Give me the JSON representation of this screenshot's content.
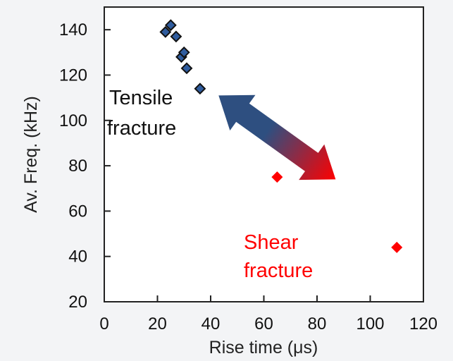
{
  "colors": {
    "tensile": "#2f5c9e",
    "tensile_edge": "#111111",
    "shear": "#ff0000",
    "arrow_start": "#2e4f80",
    "arrow_end": "#ff0000",
    "axis": "#222222"
  },
  "chart_data": {
    "type": "scatter",
    "xlabel": "Rise time (μs)",
    "ylabel": "Av. Freq. (kHz)",
    "xlim": [
      0,
      120
    ],
    "ylim": [
      20,
      150
    ],
    "xticks": [
      "0",
      "20",
      "40",
      "60",
      "80",
      "100",
      "120"
    ],
    "yticks": [
      "20",
      "40",
      "60",
      "80",
      "100",
      "120",
      "140"
    ],
    "grid": false,
    "series": [
      {
        "group": "tensile",
        "marker": "diamond",
        "points": [
          {
            "x": 23,
            "y": 139
          },
          {
            "x": 25,
            "y": 142
          },
          {
            "x": 27,
            "y": 137
          },
          {
            "x": 29,
            "y": 128
          },
          {
            "x": 30,
            "y": 130
          },
          {
            "x": 31,
            "y": 123
          },
          {
            "x": 36,
            "y": 114
          }
        ]
      },
      {
        "group": "shear",
        "marker": "diamond",
        "points": [
          {
            "x": 65,
            "y": 75
          },
          {
            "x": 110,
            "y": 44
          }
        ]
      }
    ],
    "annotations": {
      "tensile_line1": "Tensile",
      "tensile_line2": "fracture",
      "shear_line1": "Shear",
      "shear_line2": "fracture"
    },
    "double_arrow": {
      "from": {
        "x": 43,
        "y": 111
      },
      "to": {
        "x": 87,
        "y": 74
      }
    }
  }
}
